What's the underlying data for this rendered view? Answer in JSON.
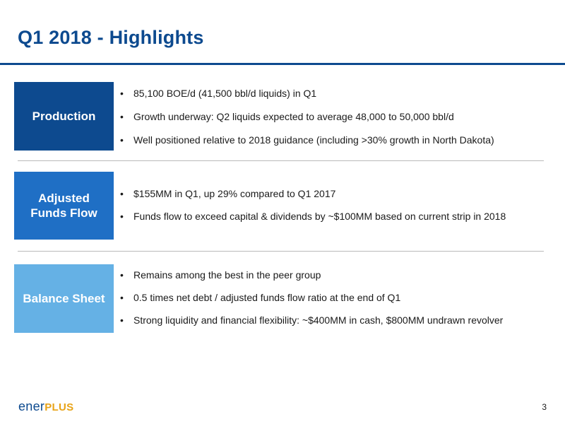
{
  "slide": {
    "title": "Q1 2018 - Highlights",
    "page_number": "3"
  },
  "sections": [
    {
      "label": "Production",
      "bullets": [
        "85,100 BOE/d (41,500 bbl/d liquids) in Q1",
        "Growth underway: Q2 liquids expected to average 48,000 to 50,000 bbl/d",
        "Well positioned relative to 2018 guidance (including >30% growth in North Dakota)"
      ]
    },
    {
      "label_line1": "Adjusted",
      "label_line2": "Funds Flow",
      "bullets": [
        "$155MM in Q1, up 29% compared to Q1 2017",
        "Funds flow to exceed capital & dividends by ~$100MM based on current strip in 2018"
      ]
    },
    {
      "label": "Balance Sheet",
      "bullets": [
        "Remains among the best in the peer group",
        "0.5 times net debt / adjusted funds flow ratio at the end of Q1",
        "Strong liquidity and financial flexibility: ~$400MM in cash, $800MM undrawn revolver"
      ]
    }
  ],
  "logo": {
    "part1": "ener",
    "part2": "PLUS"
  },
  "colors": {
    "title": "#0d4a8f",
    "production_box": "#0d4a8f",
    "funds_box": "#1f6fc5",
    "balance_box": "#65b1e5",
    "logo_accent": "#e8a317"
  }
}
